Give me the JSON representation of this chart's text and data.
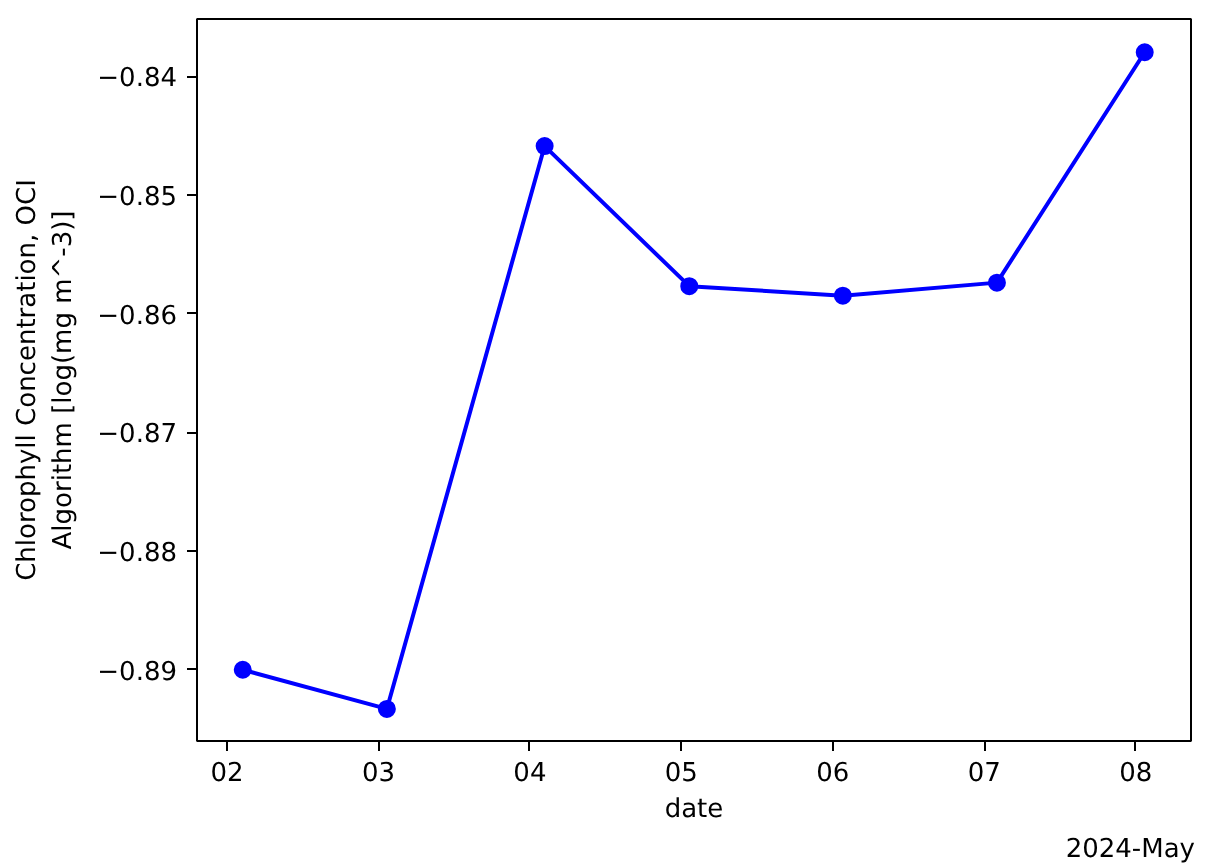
{
  "chart_data": {
    "type": "line",
    "xlabel": "date",
    "ylabel": "Chlorophyll Concentration, OCI\nAlgorithm [log(mg m^-3)]",
    "annotations": [
      "2024-May"
    ],
    "x": [
      "2024-05-02T02:30",
      "2024-05-03T01:20",
      "2024-05-04T02:20",
      "2024-05-05T01:15",
      "2024-05-06T01:35",
      "2024-05-07T02:00",
      "2024-05-08T01:25"
    ],
    "series": [
      {
        "color": "#0000ff",
        "values": [
          -0.89,
          -0.8933,
          -0.8459,
          -0.8577,
          -0.8585,
          -0.8574,
          -0.838
        ]
      }
    ],
    "xlim": [
      "2024-05-01T19:15",
      "2024-05-08T08:45"
    ],
    "ylim": [
      -0.896,
      -0.8352
    ],
    "xticks": [
      {
        "value": "2024-05-02",
        "label": "02"
      },
      {
        "value": "2024-05-03",
        "label": "03"
      },
      {
        "value": "2024-05-04",
        "label": "04"
      },
      {
        "value": "2024-05-05",
        "label": "05"
      },
      {
        "value": "2024-05-06",
        "label": "06"
      },
      {
        "value": "2024-05-07",
        "label": "07"
      },
      {
        "value": "2024-05-08",
        "label": "08"
      }
    ],
    "yticks": [
      {
        "value": -0.89,
        "label": "−0.89"
      },
      {
        "value": -0.88,
        "label": "−0.88"
      },
      {
        "value": -0.87,
        "label": "−0.87"
      },
      {
        "value": -0.86,
        "label": "−0.86"
      },
      {
        "value": -0.85,
        "label": "−0.85"
      },
      {
        "value": -0.84,
        "label": "−0.84"
      }
    ],
    "grid": false,
    "marker": "circle",
    "line_style": "solid"
  }
}
